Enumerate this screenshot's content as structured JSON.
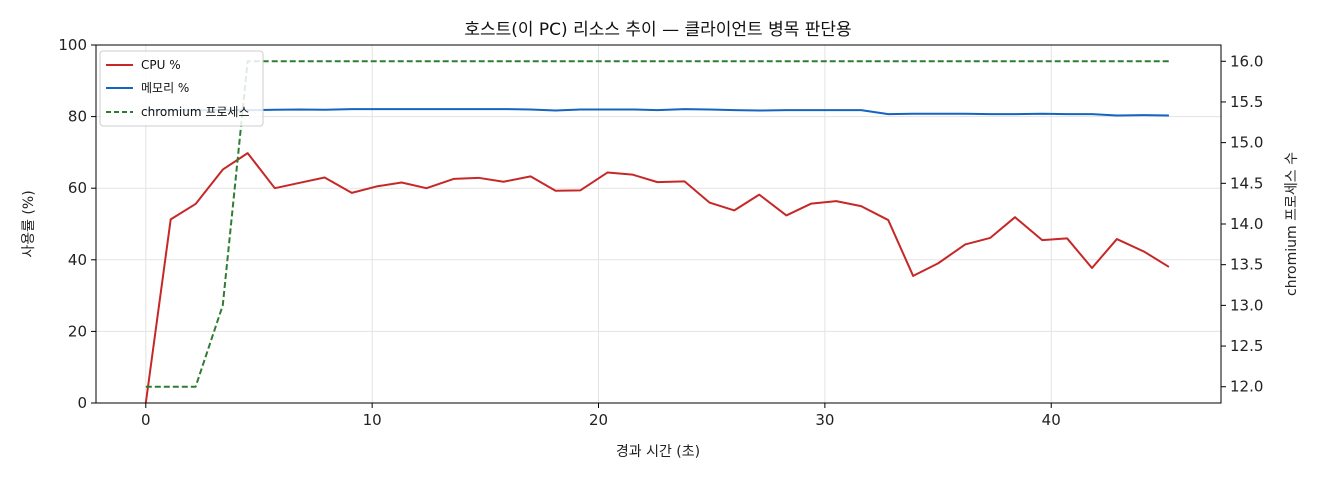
{
  "chart_data": {
    "type": "line",
    "title": "호스트(이 PC) 리소스 추이 — 클라이언트 병목 판단용",
    "xlabel": "경과 시간 (초)",
    "ylabel_left": "사용률 (%)",
    "ylabel_right": "chromium 프로세스 수",
    "xlim": [
      -2.2,
      47.5
    ],
    "ylim_left": [
      0,
      100
    ],
    "ylim_right": [
      11.8,
      16.2
    ],
    "xticks": [
      0,
      10,
      20,
      30,
      40
    ],
    "yticks_left": [
      0,
      20,
      40,
      60,
      80,
      100
    ],
    "yticks_right": [
      12.0,
      12.5,
      13.0,
      13.5,
      14.0,
      14.5,
      15.0,
      15.5,
      16.0
    ],
    "ytick_labels_right": [
      "12.0",
      "12.5",
      "13.0",
      "13.5",
      "14.0",
      "14.5",
      "15.0",
      "15.5",
      "16.0"
    ],
    "grid": true,
    "legend_position": "top-left",
    "series": [
      {
        "name": "CPU %",
        "axis": "left",
        "color": "#c62828",
        "style": "solid",
        "x": [
          0,
          1.1,
          2.2,
          3.4,
          4.5,
          5.7,
          6.8,
          7.9,
          9.1,
          10.2,
          11.3,
          12.4,
          13.6,
          14.7,
          15.8,
          17.0,
          18.1,
          19.2,
          20.4,
          21.5,
          22.6,
          23.8,
          24.9,
          26.0,
          27.1,
          28.3,
          29.4,
          30.5,
          31.6,
          32.8,
          33.9,
          35.0,
          36.2,
          37.3,
          38.4,
          39.6,
          40.7,
          41.8,
          42.9,
          44.1,
          45.2
        ],
        "values": [
          0,
          51.3,
          55.6,
          65.2,
          69.8,
          60.0,
          61.5,
          63.0,
          58.7,
          60.5,
          61.6,
          60.0,
          62.6,
          62.9,
          61.8,
          63.3,
          59.3,
          59.4,
          64.4,
          63.8,
          61.7,
          61.9,
          56.0,
          53.8,
          58.2,
          52.4,
          55.7,
          56.4,
          55.0,
          51.1,
          35.5,
          39.0,
          44.3,
          46.1,
          51.9,
          45.5,
          46.0,
          37.7,
          45.8,
          42.3,
          38.0
        ]
      },
      {
        "name": "메모리 %",
        "axis": "left",
        "color": "#1565c0",
        "style": "solid",
        "x": [
          0,
          1.1,
          2.2,
          3.4,
          4.5,
          5.7,
          6.8,
          7.9,
          9.1,
          10.2,
          11.3,
          12.4,
          13.6,
          14.7,
          15.8,
          17.0,
          18.1,
          19.2,
          20.4,
          21.5,
          22.6,
          23.8,
          24.9,
          26.0,
          27.1,
          28.3,
          29.4,
          30.5,
          31.6,
          32.8,
          33.9,
          35.0,
          36.2,
          37.3,
          38.4,
          39.6,
          40.7,
          41.8,
          42.9,
          44.1,
          45.2
        ],
        "values": [
          81.8,
          81.8,
          81.8,
          81.8,
          81.8,
          81.9,
          82.0,
          81.9,
          82.1,
          82.1,
          82.1,
          82.1,
          82.1,
          82.1,
          82.1,
          82.0,
          81.7,
          82.0,
          82.0,
          82.0,
          81.8,
          82.1,
          82.0,
          81.8,
          81.7,
          81.8,
          81.8,
          81.8,
          81.8,
          80.7,
          80.8,
          80.8,
          80.8,
          80.7,
          80.7,
          80.8,
          80.7,
          80.7,
          80.3,
          80.4,
          80.3
        ]
      },
      {
        "name": "chromium 프로세스",
        "axis": "right",
        "color": "#2e7d32",
        "style": "dashed",
        "x": [
          0,
          1.1,
          2.2,
          3.4,
          4.5,
          5.7,
          45.2
        ],
        "values": [
          12,
          12,
          12,
          13,
          16,
          16,
          16
        ]
      }
    ]
  }
}
